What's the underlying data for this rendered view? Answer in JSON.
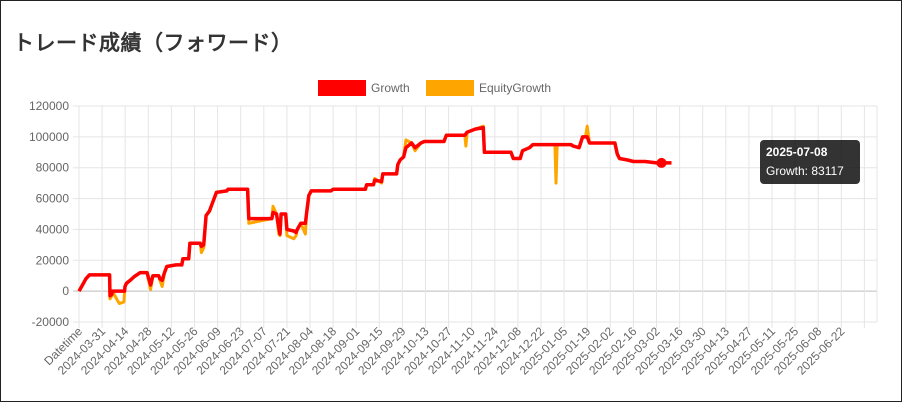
{
  "page": {
    "title": "トレード成績（フォワード）"
  },
  "colors": {
    "growth": "#ff0000",
    "equity": "#ffa500",
    "grid": "#e5e5e5",
    "tooltip_bg": "#000000"
  },
  "tooltip": {
    "title": "2025-07-08",
    "body": "Growth: 83117"
  },
  "chart_data": {
    "type": "line",
    "legend_position": "top",
    "grid": true,
    "ylim": [
      -20000,
      120000
    ],
    "yticks": [
      -20000,
      0,
      20000,
      40000,
      60000,
      80000,
      100000,
      120000
    ],
    "ytick_labels": [
      "-20000",
      "0",
      "20000",
      "40000",
      "60000",
      "80000",
      "100000",
      "120000"
    ],
    "xlabels": [
      "Datetime",
      "2024-03-31",
      "2024-04-14",
      "2024-04-28",
      "2024-05-12",
      "2024-05-26",
      "2024-06-09",
      "2024-06-23",
      "2024-07-07",
      "2024-07-21",
      "2024-08-04",
      "2024-08-18",
      "2024-09-01",
      "2024-09-15",
      "2024-09-29",
      "2024-10-13",
      "2024-10-27",
      "2024-11-10",
      "2024-11-24",
      "2024-12-08",
      "2024-12-22",
      "2025-01-05",
      "2025-01-19",
      "2025-02-02",
      "2025-02-16",
      "2025-03-02",
      "2025-03-16",
      "2025-03-30",
      "2025-04-13",
      "2025-04-27",
      "2025-05-11",
      "2025-05-25",
      "2025-06-08",
      "2025-06-22"
    ],
    "series": [
      {
        "name": "Growth",
        "points": [
          [
            0,
            0
          ],
          [
            0.3,
            4000
          ],
          [
            0.6,
            8000
          ],
          [
            0.9,
            10500
          ],
          [
            2.65,
            10500
          ],
          [
            2.68,
            -3000
          ],
          [
            2.85,
            -2000
          ],
          [
            2.88,
            0
          ],
          [
            3.95,
            0
          ],
          [
            3.98,
            3000
          ],
          [
            4.1,
            5000
          ],
          [
            4.5,
            7500
          ],
          [
            4.8,
            9500
          ],
          [
            5.1,
            11000
          ],
          [
            5.3,
            12000
          ],
          [
            5.9,
            12000
          ],
          [
            6.0,
            9000
          ],
          [
            6.2,
            4000
          ],
          [
            6.4,
            10000
          ],
          [
            6.9,
            10000
          ],
          [
            7.0,
            8000
          ],
          [
            7.2,
            7000
          ],
          [
            7.4,
            12000
          ],
          [
            7.6,
            16000
          ],
          [
            8.4,
            17000
          ],
          [
            8.9,
            17000
          ],
          [
            9.0,
            21000
          ],
          [
            9.5,
            21000
          ],
          [
            9.6,
            31000
          ],
          [
            10.5,
            31000
          ],
          [
            10.6,
            29000
          ],
          [
            10.8,
            30000
          ],
          [
            11.0,
            49000
          ],
          [
            11.3,
            52000
          ],
          [
            11.5,
            56000
          ],
          [
            11.7,
            60000
          ],
          [
            11.9,
            64000
          ],
          [
            12.8,
            65000
          ],
          [
            12.9,
            66000
          ],
          [
            14.6,
            66000
          ],
          [
            14.7,
            47000
          ],
          [
            16.7,
            47000
          ],
          [
            16.8,
            51000
          ],
          [
            17.1,
            50000
          ],
          [
            17.3,
            41000
          ],
          [
            17.4,
            37000
          ],
          [
            17.5,
            50000
          ],
          [
            17.9,
            50000
          ],
          [
            18.0,
            40000
          ],
          [
            18.6,
            39000
          ],
          [
            18.8,
            38000
          ],
          [
            18.9,
            40000
          ],
          [
            19.2,
            44000
          ],
          [
            19.6,
            44000
          ],
          [
            19.7,
            50000
          ],
          [
            19.9,
            62000
          ],
          [
            20.1,
            65000
          ],
          [
            21.8,
            65000
          ],
          [
            22.0,
            66000
          ],
          [
            24.8,
            66000
          ],
          [
            24.9,
            69000
          ],
          [
            25.5,
            69000
          ],
          [
            25.6,
            72000
          ],
          [
            26.2,
            71000
          ],
          [
            26.3,
            76000
          ],
          [
            27.5,
            76000
          ],
          [
            27.6,
            82000
          ],
          [
            27.8,
            85000
          ],
          [
            28.1,
            87000
          ],
          [
            28.3,
            93000
          ],
          [
            28.8,
            96000
          ],
          [
            29.1,
            93000
          ],
          [
            29.6,
            96000
          ],
          [
            29.9,
            97000
          ],
          [
            31.6,
            97000
          ],
          [
            31.8,
            101000
          ],
          [
            33.4,
            101000
          ],
          [
            33.6,
            103000
          ],
          [
            34.3,
            105000
          ],
          [
            35.0,
            106000
          ],
          [
            35.1,
            90000
          ],
          [
            37.4,
            90000
          ],
          [
            37.6,
            86000
          ],
          [
            38.2,
            86000
          ],
          [
            38.4,
            91000
          ],
          [
            39.0,
            93000
          ],
          [
            39.3,
            95000
          ],
          [
            42.6,
            95000
          ],
          [
            42.8,
            94000
          ],
          [
            43.3,
            93000
          ],
          [
            43.6,
            100000
          ],
          [
            44.0,
            100000
          ],
          [
            44.2,
            96000
          ],
          [
            45.0,
            96000
          ],
          [
            46.4,
            96000
          ],
          [
            46.6,
            89000
          ],
          [
            46.8,
            86000
          ],
          [
            47.5,
            85000
          ],
          [
            48.0,
            84000
          ],
          [
            49.0,
            84000
          ],
          [
            50.0,
            83117
          ],
          [
            51.3,
            83117
          ]
        ]
      },
      {
        "name": "EquityGrowth",
        "points": [
          [
            0,
            0
          ],
          [
            0.3,
            4000
          ],
          [
            0.6,
            8000
          ],
          [
            0.9,
            10500
          ],
          [
            2.65,
            10500
          ],
          [
            2.68,
            -5000
          ],
          [
            2.85,
            -3000
          ],
          [
            2.88,
            0
          ],
          [
            3.4,
            -7000
          ],
          [
            3.5,
            -8000
          ],
          [
            3.9,
            -7000
          ],
          [
            3.95,
            0
          ],
          [
            3.98,
            3000
          ],
          [
            4.1,
            5000
          ],
          [
            4.5,
            7500
          ],
          [
            4.8,
            9500
          ],
          [
            5.1,
            11000
          ],
          [
            5.3,
            12000
          ],
          [
            5.9,
            12000
          ],
          [
            6.0,
            8000
          ],
          [
            6.2,
            1000
          ],
          [
            6.4,
            10000
          ],
          [
            6.9,
            10000
          ],
          [
            7.0,
            7000
          ],
          [
            7.2,
            3000
          ],
          [
            7.4,
            12000
          ],
          [
            7.6,
            16000
          ],
          [
            8.4,
            17000
          ],
          [
            8.9,
            17000
          ],
          [
            9.0,
            21000
          ],
          [
            9.5,
            21000
          ],
          [
            9.6,
            31000
          ],
          [
            10.5,
            31000
          ],
          [
            10.6,
            25000
          ],
          [
            10.8,
            28000
          ],
          [
            11.0,
            49000
          ],
          [
            11.3,
            52000
          ],
          [
            11.5,
            56000
          ],
          [
            11.7,
            60000
          ],
          [
            11.9,
            64000
          ],
          [
            12.8,
            65000
          ],
          [
            12.9,
            66000
          ],
          [
            14.6,
            66000
          ],
          [
            14.7,
            44000
          ],
          [
            16.7,
            47000
          ],
          [
            16.8,
            55000
          ],
          [
            17.1,
            50000
          ],
          [
            17.3,
            37000
          ],
          [
            17.4,
            36000
          ],
          [
            17.5,
            50000
          ],
          [
            17.9,
            50000
          ],
          [
            18.0,
            36000
          ],
          [
            18.6,
            34000
          ],
          [
            18.8,
            36000
          ],
          [
            18.9,
            40000
          ],
          [
            19.2,
            44000
          ],
          [
            19.6,
            37000
          ],
          [
            19.7,
            50000
          ],
          [
            19.9,
            62000
          ],
          [
            20.1,
            65000
          ],
          [
            21.8,
            65000
          ],
          [
            22.0,
            66000
          ],
          [
            24.8,
            66000
          ],
          [
            24.9,
            69000
          ],
          [
            25.5,
            69000
          ],
          [
            25.6,
            73000
          ],
          [
            26.2,
            70000
          ],
          [
            26.3,
            76000
          ],
          [
            27.5,
            76000
          ],
          [
            27.6,
            82000
          ],
          [
            27.8,
            85000
          ],
          [
            28.1,
            87000
          ],
          [
            28.3,
            98000
          ],
          [
            28.8,
            96000
          ],
          [
            29.1,
            91000
          ],
          [
            29.6,
            96000
          ],
          [
            29.9,
            97000
          ],
          [
            31.6,
            97000
          ],
          [
            31.8,
            101000
          ],
          [
            33.4,
            101000
          ],
          [
            33.5,
            94000
          ],
          [
            33.6,
            103000
          ],
          [
            34.3,
            105000
          ],
          [
            35.0,
            107000
          ],
          [
            35.1,
            90000
          ],
          [
            37.4,
            90000
          ],
          [
            37.6,
            86000
          ],
          [
            38.2,
            86000
          ],
          [
            38.4,
            91000
          ],
          [
            39.0,
            93000
          ],
          [
            39.3,
            95000
          ],
          [
            41.2,
            95000
          ],
          [
            41.3,
            70000
          ],
          [
            41.4,
            95000
          ],
          [
            42.6,
            95000
          ],
          [
            42.8,
            94000
          ],
          [
            43.3,
            93000
          ],
          [
            43.6,
            100000
          ],
          [
            43.85,
            100000
          ],
          [
            44.0,
            107000
          ],
          [
            44.2,
            96000
          ],
          [
            45.0,
            96000
          ],
          [
            46.4,
            96000
          ],
          [
            46.6,
            89000
          ],
          [
            46.8,
            86000
          ],
          [
            47.5,
            85000
          ],
          [
            48.0,
            84000
          ],
          [
            49.0,
            84000
          ],
          [
            50.0,
            83117
          ],
          [
            51.3,
            83117
          ]
        ]
      }
    ]
  }
}
